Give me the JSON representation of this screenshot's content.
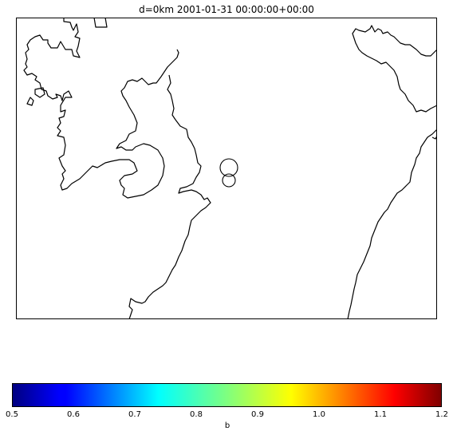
{
  "title": "d=0km 2001-01-31 00:00:00+00:00",
  "chart_data": {
    "type": "scatter",
    "title": "d=0km 2001-01-31 00:00:00+00:00",
    "points": [
      {
        "id": "circle-1",
        "size": "larger"
      },
      {
        "id": "circle-2",
        "size": "smaller"
      }
    ],
    "colorbar": {
      "label": "b",
      "colormap": "jet",
      "range": [
        0.5,
        1.2
      ],
      "ticks": [
        "0.5",
        "0.6",
        "0.7",
        "0.8",
        "0.9",
        "1.0",
        "1.1",
        "1.2"
      ]
    },
    "grid": false
  },
  "colors": {
    "coastline": "#000000",
    "background": "#ffffff"
  }
}
